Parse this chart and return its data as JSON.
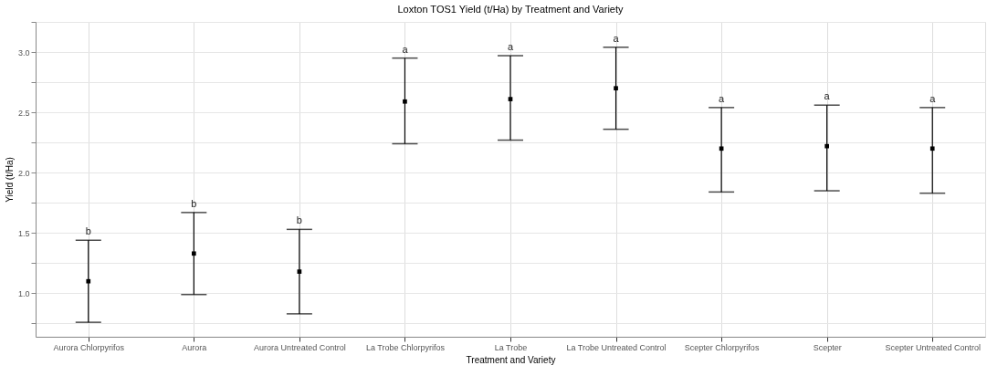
{
  "chart_data": {
    "type": "scatter",
    "title": "Loxton TOS1 Yield (t/Ha) by Treatment and Variety",
    "xlabel": "Treatment and Variety",
    "ylabel": "Yield (t/Ha)",
    "categories": [
      "Aurora Chlorpyrifos",
      "Aurora",
      "Aurora Untreated Control",
      "La Trobe Chlorpyrifos",
      "La Trobe",
      "La Trobe Untreated Control",
      "Scepter Chlorpyrifos",
      "Scepter",
      "Scepter Untreated Control"
    ],
    "series": [
      {
        "color": "#000000",
        "values": [
          1.1,
          1.33,
          1.18,
          2.59,
          2.61,
          2.7,
          2.2,
          2.22,
          2.2
        ],
        "errors": [
          [
            0.76,
            1.44
          ],
          [
            0.99,
            1.67
          ],
          [
            0.83,
            1.53
          ],
          [
            2.24,
            2.95
          ],
          [
            2.27,
            2.97
          ],
          [
            2.36,
            3.04
          ],
          [
            1.84,
            2.54
          ],
          [
            1.85,
            2.56
          ],
          [
            1.83,
            2.54
          ]
        ]
      }
    ],
    "annotations": [
      "b",
      "b",
      "b",
      "a",
      "a",
      "a",
      "a",
      "a",
      "a"
    ],
    "ylim": [
      0.64,
      3.25
    ],
    "yticks": [
      {
        "value": 0.75,
        "label": null
      },
      {
        "value": 1,
        "label": "1.0"
      },
      {
        "value": 1.25,
        "label": null
      },
      1.5,
      {
        "value": 1.75,
        "label": null
      },
      {
        "value": 2,
        "label": "2.0"
      },
      {
        "value": 2.25,
        "label": null
      },
      2.5,
      {
        "value": 2.75,
        "label": null
      },
      {
        "value": 3,
        "label": "3.0"
      },
      {
        "value": 3.25,
        "label": null
      }
    ],
    "grid": true,
    "marker": "square"
  }
}
